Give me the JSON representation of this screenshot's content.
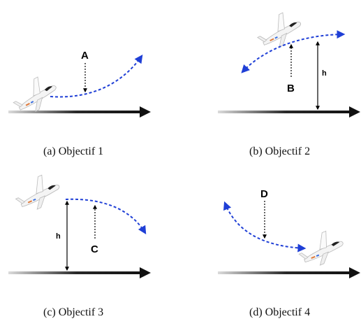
{
  "panels": [
    {
      "id": "a",
      "caption": "(a) Objectif 1",
      "point_label": "A"
    },
    {
      "id": "b",
      "caption": "(b) Objectif 2",
      "point_label": "B",
      "height_label": "h"
    },
    {
      "id": "c",
      "caption": "(c) Objectif 3",
      "point_label": "C",
      "height_label": "h"
    },
    {
      "id": "d",
      "caption": "(d) Objectif 4",
      "point_label": "D"
    }
  ],
  "colors": {
    "trajectory": "#1f3fd6",
    "ground": "#111111",
    "annotation": "#000000"
  },
  "icons": [
    "airplane-icon",
    "ground-arrow",
    "trajectory-arrow"
  ]
}
